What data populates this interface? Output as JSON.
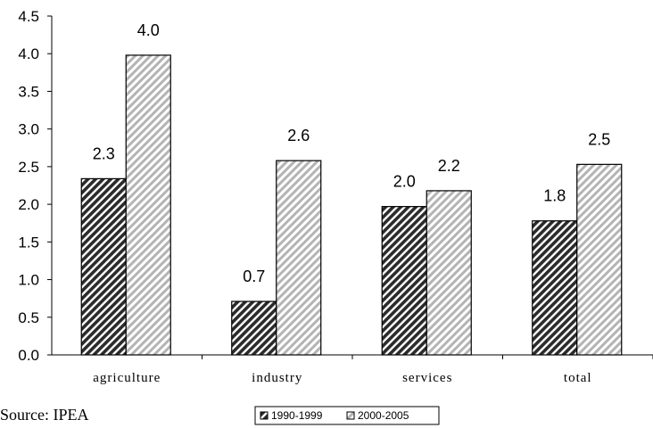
{
  "chart_data": {
    "type": "bar",
    "categories": [
      "agriculture",
      "industry",
      "services",
      "total"
    ],
    "series": [
      {
        "name": "1990-1999",
        "values": [
          2.34,
          0.71,
          1.97,
          1.78
        ],
        "labels": [
          "2.3",
          "0.7",
          "2.0",
          "1.8"
        ],
        "pattern": "dark-hatch"
      },
      {
        "name": "2000-2005",
        "values": [
          3.98,
          2.58,
          2.18,
          2.53
        ],
        "labels": [
          "4.0",
          "2.6",
          "2.2",
          "2.5"
        ],
        "pattern": "light-hatch"
      }
    ],
    "ylim": [
      0,
      4.5
    ],
    "yticks": [
      "0.0",
      "0.5",
      "1.0",
      "1.5",
      "2.0",
      "2.5",
      "3.0",
      "3.5",
      "4.0",
      "4.5"
    ],
    "title": "",
    "xlabel": "",
    "ylabel": "",
    "grid": false,
    "legend_position": "bottom-center"
  },
  "source": "Source: IPEA"
}
